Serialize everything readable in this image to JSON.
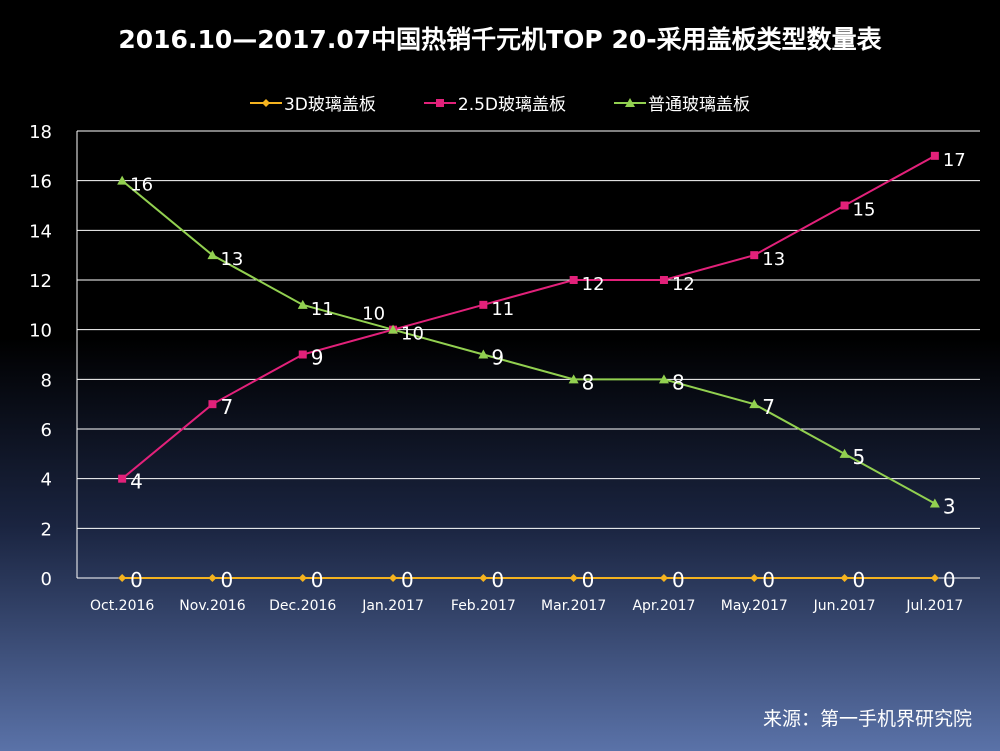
{
  "chart_data": {
    "type": "line",
    "title": "2016.10—2017.07中国热销千元机TOP 20-采用盖板类型数量表",
    "categories": [
      "Oct.2016",
      "Nov.2016",
      "Dec.2016",
      "Jan.2017",
      "Feb.2017",
      "Mar.2017",
      "Apr.2017",
      "May.2017",
      "Jun.2017",
      "Jul.2017"
    ],
    "ylim": [
      0,
      18
    ],
    "yticks": [
      0,
      2,
      4,
      6,
      8,
      10,
      12,
      14,
      16,
      18
    ],
    "grid": true,
    "legend_position": "top",
    "series": [
      {
        "name": "3D玻璃盖板",
        "color": "#F5B31F",
        "marker": "diamond",
        "values": [
          0,
          0,
          0,
          0,
          0,
          0,
          0,
          0,
          0,
          0
        ]
      },
      {
        "name": "2.5D玻璃盖板",
        "color": "#E2217A",
        "marker": "square",
        "values": [
          4,
          7,
          9,
          10,
          11,
          12,
          12,
          13,
          15,
          17
        ]
      },
      {
        "name": "普通玻璃盖板",
        "color": "#92D050",
        "marker": "triangle",
        "values": [
          16,
          13,
          11,
          10,
          9,
          8,
          8,
          7,
          5,
          3
        ]
      }
    ],
    "source": "来源：第一手机界研究院"
  }
}
